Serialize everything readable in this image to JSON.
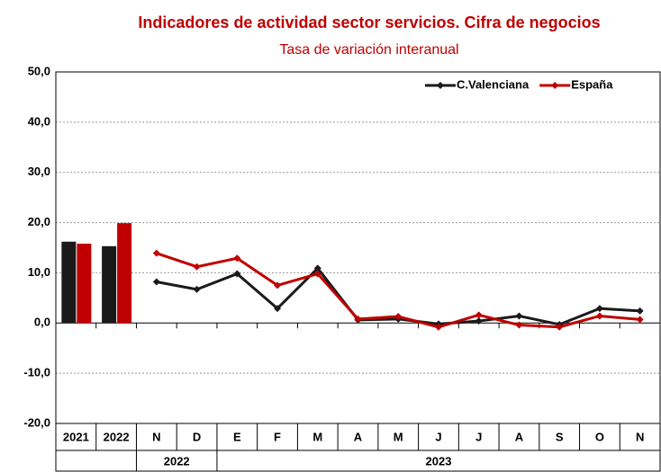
{
  "chart_data": {
    "type": "bar-line",
    "title": "Indicadores de actividad sector servicios. Cifra de negocios",
    "subtitle": "Tasa de variación interanual",
    "annual_categories": [
      "2021",
      "2022"
    ],
    "monthly_categories": [
      "N",
      "D",
      "E",
      "F",
      "M",
      "A",
      "M",
      "J",
      "J",
      "A",
      "S",
      "O",
      "N"
    ],
    "monthly_years": [
      "2022",
      null,
      "2023",
      null,
      null,
      null,
      null,
      null,
      null,
      null,
      null,
      null,
      null
    ],
    "series": [
      {
        "name": "C.Valenciana",
        "color": "#1a1a1a",
        "annual_values": [
          16.2,
          15.3
        ],
        "monthly_values": [
          8.2,
          6.7,
          9.8,
          2.9,
          10.9,
          0.6,
          0.8,
          -0.2,
          0.4,
          1.4,
          -0.3,
          2.9,
          2.4
        ]
      },
      {
        "name": "España",
        "color": "#c00000",
        "annual_values": [
          15.8,
          19.9
        ],
        "monthly_values": [
          13.9,
          11.2,
          12.9,
          7.5,
          9.8,
          0.8,
          1.3,
          -0.8,
          1.6,
          -0.4,
          -0.8,
          1.4,
          0.7
        ]
      }
    ],
    "ylim": [
      -20,
      50
    ],
    "yticks": [
      {
        "value": -20,
        "label": "-20,0"
      },
      {
        "value": -10,
        "label": "-10,0"
      },
      {
        "value": 0,
        "label": "0,0"
      },
      {
        "value": 10,
        "label": "10,0"
      },
      {
        "value": 20,
        "label": "20,0"
      },
      {
        "value": 30,
        "label": "30,0"
      },
      {
        "value": 40,
        "label": "40,0"
      },
      {
        "value": 50,
        "label": "50,0"
      }
    ],
    "grid": true,
    "legend": "top-right"
  }
}
